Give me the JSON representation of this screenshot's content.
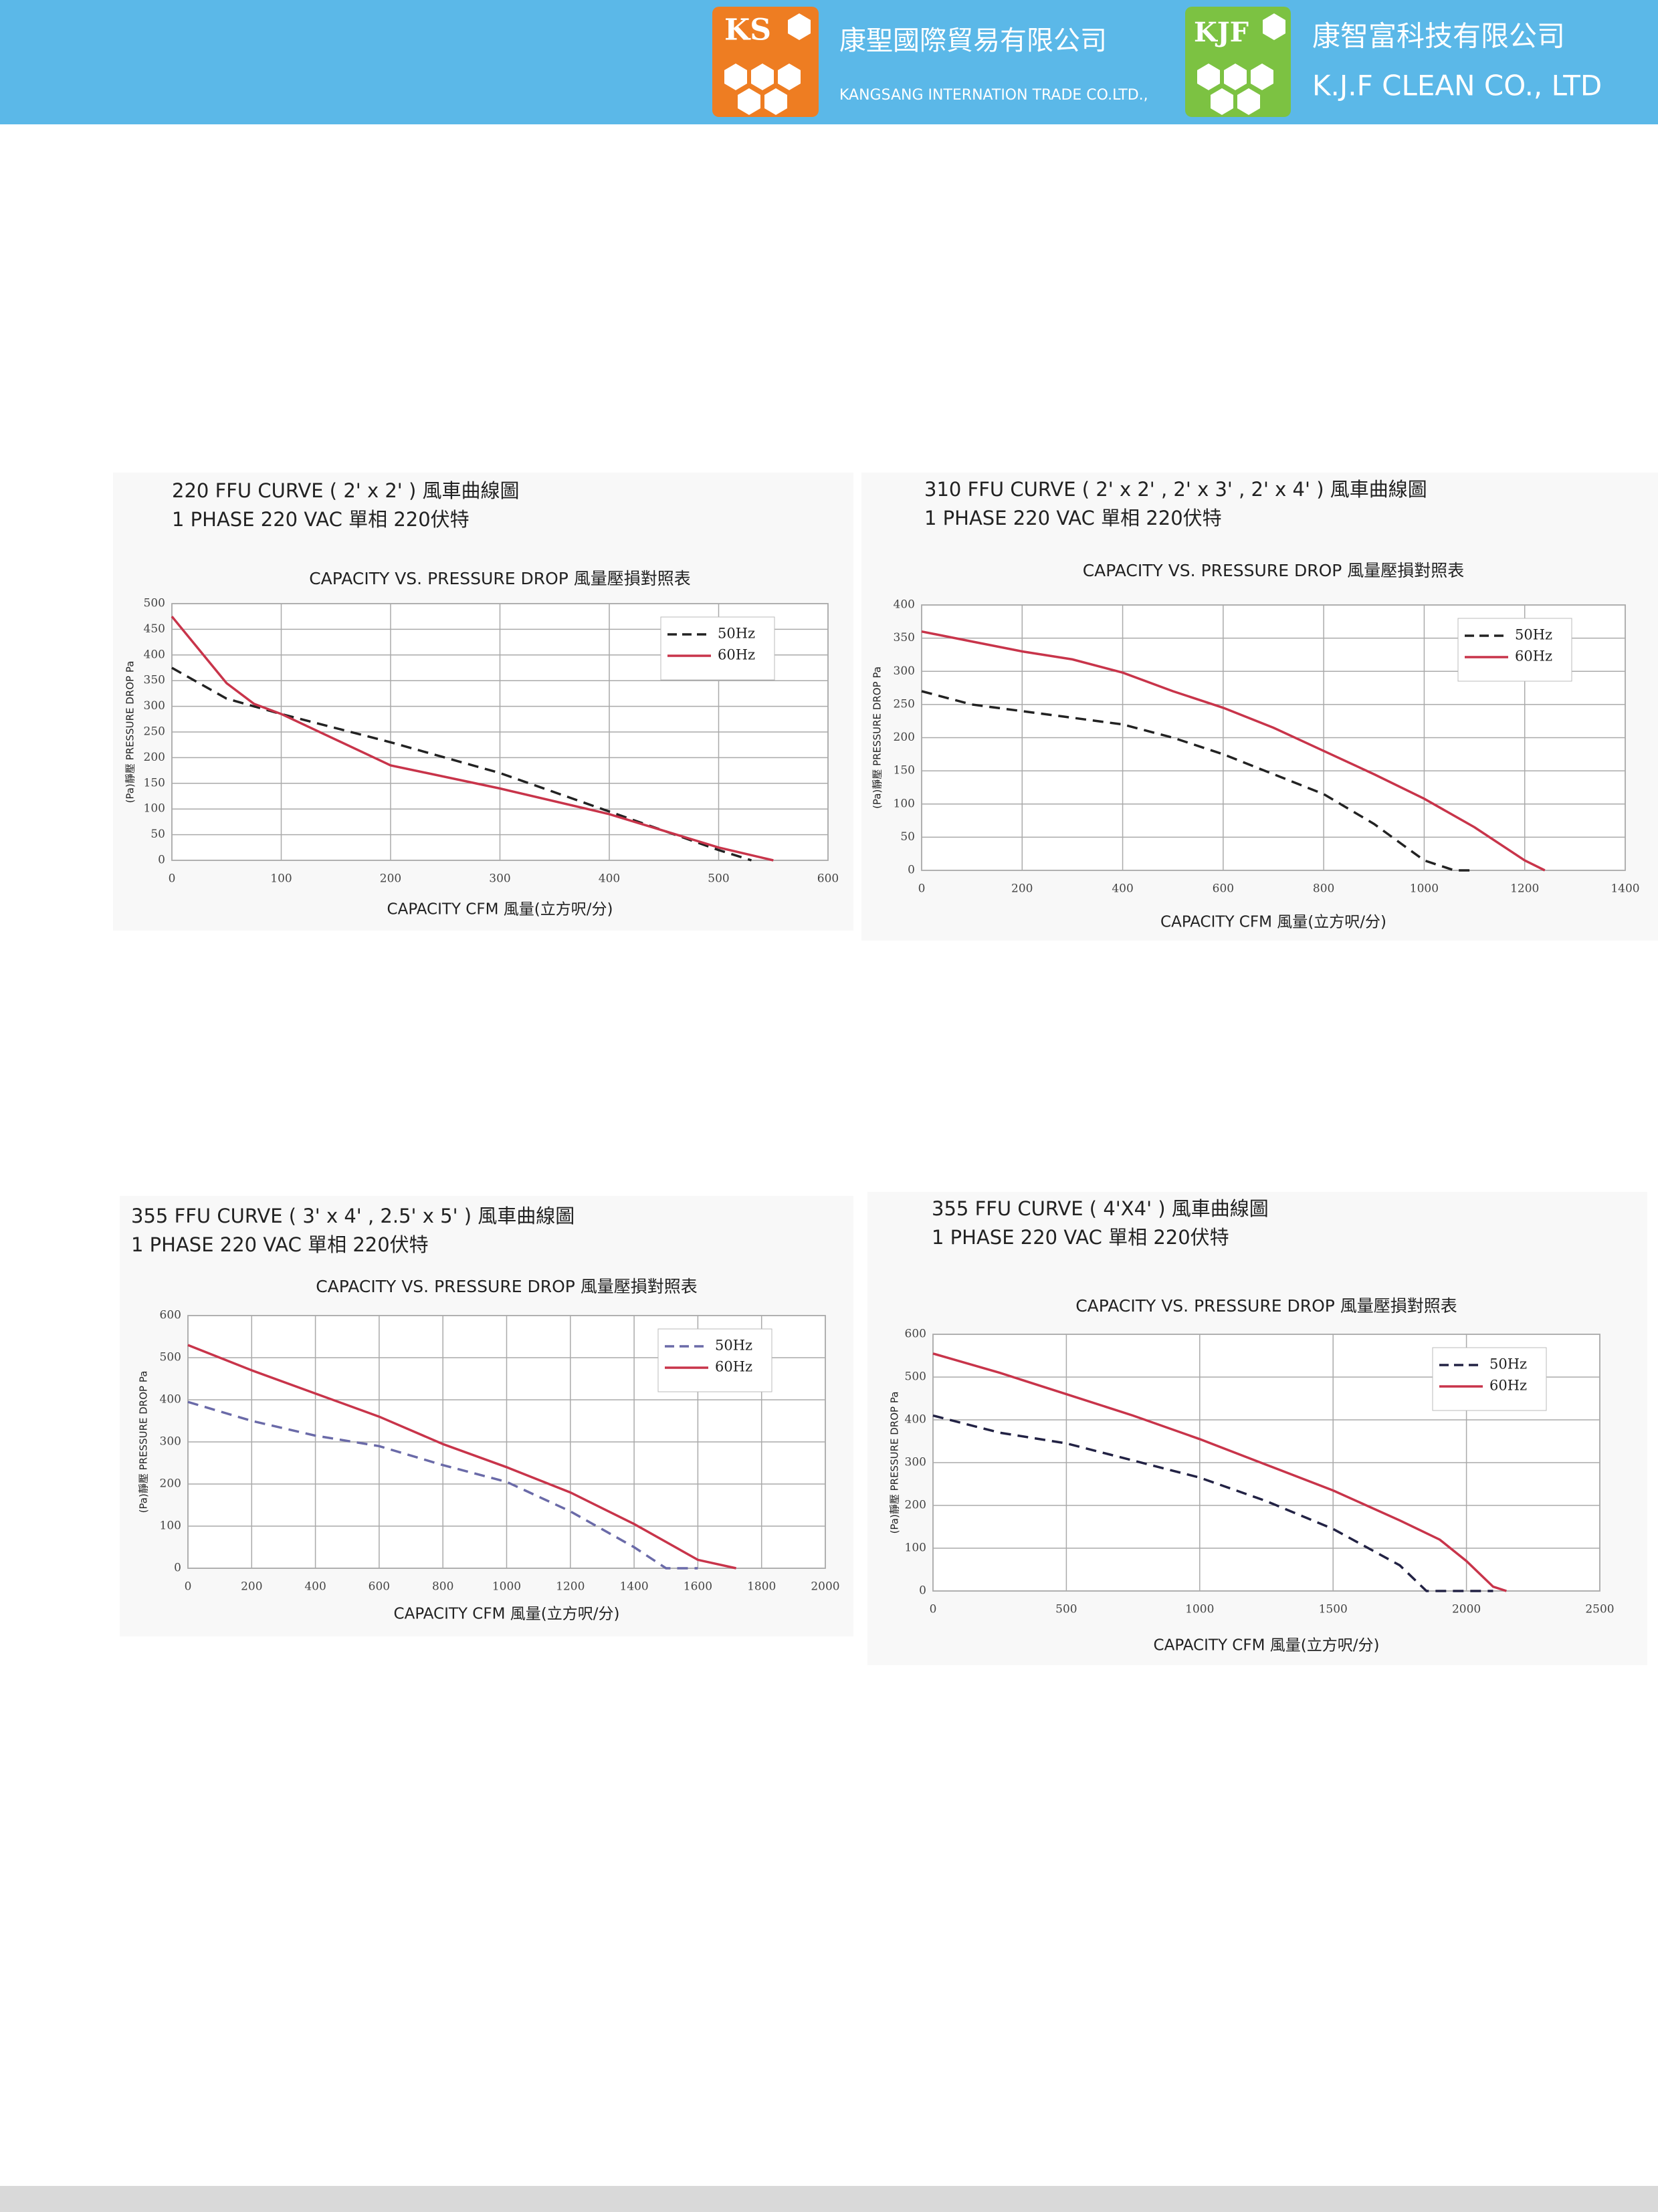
{
  "header": {
    "logo1": "KS",
    "company1_name": "康聖國際貿易有限公司",
    "company1_english": "KANGSANG INTERNATION TRADE CO.LTD.,",
    "logo2": "KJF",
    "company2_name": "康智富科技有限公司",
    "company2_english": "K.J.F CLEAN CO., LTD"
  },
  "chart_data": [
    {
      "type": "line",
      "title": "220 FFU CURVE ( 2' x 2' ) 風車曲線圖",
      "subtitle": "1 PHASE 220 VAC 單相 220伏特",
      "chart_title": "CAPACITY VS. PRESSURE DROP 風量壓損對照表",
      "xlabel": "CAPACITY CFM 風量(立方呎/分)",
      "ylabel": "(Pa)靜壓 PRESSURE DROP Pa",
      "xlim": [
        0,
        600
      ],
      "ylim": [
        0,
        500
      ],
      "xticks": [
        0,
        100,
        200,
        300,
        400,
        500,
        600
      ],
      "yticks": [
        0,
        50,
        100,
        150,
        200,
        250,
        300,
        350,
        400,
        450,
        500
      ],
      "grid": true,
      "legend": "upper right",
      "series": [
        {
          "name": "50Hz",
          "color": "#222222",
          "linestyle": "dashed",
          "x": [
            0,
            50,
            100,
            200,
            300,
            400,
            500,
            530
          ],
          "values": [
            375,
            315,
            285,
            230,
            170,
            95,
            20,
            0
          ]
        },
        {
          "name": "60Hz",
          "color": "#c8344a",
          "linestyle": "solid",
          "x": [
            0,
            25,
            50,
            75,
            100,
            200,
            300,
            400,
            500,
            550
          ],
          "values": [
            475,
            410,
            345,
            305,
            285,
            185,
            140,
            90,
            25,
            0
          ]
        }
      ]
    },
    {
      "type": "line",
      "title": "310 FFU CURVE ( 2' x 2' , 2' x 3' , 2' x 4' ) 風車曲線圖",
      "subtitle": "1 PHASE 220 VAC 單相 220伏特",
      "chart_title": "CAPACITY VS. PRESSURE DROP 風量壓損對照表",
      "xlabel": "CAPACITY CFM 風量(立方呎/分)",
      "ylabel": "(Pa)靜壓 PRESSURE DROP Pa",
      "xlim": [
        0,
        1400
      ],
      "ylim": [
        0,
        400
      ],
      "xticks": [
        0,
        200,
        400,
        600,
        800,
        1000,
        1200,
        1400
      ],
      "yticks": [
        0,
        50,
        100,
        150,
        200,
        250,
        300,
        350,
        400
      ],
      "grid": true,
      "legend": "upper right",
      "series": [
        {
          "name": "50Hz",
          "color": "#222222",
          "linestyle": "dashed",
          "x": [
            0,
            100,
            200,
            300,
            400,
            500,
            600,
            700,
            800,
            900,
            1000,
            1060,
            1100
          ],
          "values": [
            270,
            250,
            240,
            230,
            220,
            200,
            175,
            145,
            115,
            70,
            15,
            0,
            0
          ]
        },
        {
          "name": "60Hz",
          "color": "#c8344a",
          "linestyle": "solid",
          "x": [
            0,
            100,
            200,
            300,
            400,
            500,
            600,
            700,
            800,
            900,
            1000,
            1100,
            1200,
            1240
          ],
          "values": [
            360,
            345,
            330,
            318,
            298,
            270,
            245,
            215,
            180,
            145,
            108,
            65,
            15,
            0
          ]
        }
      ]
    },
    {
      "type": "line",
      "title": "355 FFU CURVE ( 3' x 4' , 2.5' x 5' ) 風車曲線圖",
      "subtitle": "1 PHASE 220 VAC 單相 220伏特",
      "chart_title": "CAPACITY VS. PRESSURE DROP 風量壓損對照表",
      "xlabel": "CAPACITY CFM 風量(立方呎/分)",
      "ylabel": "(Pa)靜壓 PRESSURE DROP Pa",
      "xlim": [
        0,
        2000
      ],
      "ylim": [
        0,
        600
      ],
      "xticks": [
        0,
        200,
        400,
        600,
        800,
        1000,
        1200,
        1400,
        1600,
        1800,
        2000
      ],
      "yticks": [
        0,
        100,
        200,
        300,
        400,
        500,
        600
      ],
      "grid": true,
      "legend": "upper right",
      "series": [
        {
          "name": "50Hz",
          "color": "#6a6aa8",
          "linestyle": "dashed",
          "x": [
            0,
            200,
            400,
            600,
            800,
            1000,
            1200,
            1400,
            1500,
            1600
          ],
          "values": [
            395,
            350,
            315,
            290,
            245,
            205,
            135,
            50,
            0,
            0
          ]
        },
        {
          "name": "60Hz",
          "color": "#c8344a",
          "linestyle": "solid",
          "x": [
            0,
            200,
            400,
            600,
            800,
            1000,
            1200,
            1400,
            1600,
            1720
          ],
          "values": [
            530,
            470,
            415,
            360,
            295,
            240,
            180,
            105,
            20,
            0
          ]
        }
      ]
    },
    {
      "type": "line",
      "title": "355 FFU CURVE ( 4'X4' ) 風車曲線圖",
      "subtitle": "1 PHASE 220 VAC 單相 220伏特",
      "chart_title": "CAPACITY VS. PRESSURE DROP 風量壓損對照表",
      "xlabel": "CAPACITY CFM 風量(立方呎/分)",
      "ylabel": "(Pa)靜壓 PRESSURE DROP Pa",
      "xlim": [
        0,
        2500
      ],
      "ylim": [
        0,
        600
      ],
      "xticks": [
        0,
        500,
        1000,
        1500,
        2000,
        2500
      ],
      "yticks": [
        0,
        100,
        200,
        300,
        400,
        500,
        600
      ],
      "grid": true,
      "legend": "upper right",
      "series": [
        {
          "name": "50Hz",
          "color": "#222244",
          "linestyle": "dashed",
          "x": [
            0,
            250,
            500,
            750,
            1000,
            1250,
            1500,
            1750,
            1850,
            2000,
            2100
          ],
          "values": [
            410,
            370,
            345,
            305,
            265,
            210,
            145,
            60,
            0,
            0,
            0
          ]
        },
        {
          "name": "60Hz",
          "color": "#c8344a",
          "linestyle": "solid",
          "x": [
            0,
            250,
            500,
            750,
            1000,
            1250,
            1500,
            1750,
            1900,
            2000,
            2100,
            2150
          ],
          "values": [
            555,
            510,
            460,
            410,
            355,
            295,
            235,
            165,
            120,
            70,
            10,
            0
          ]
        }
      ]
    }
  ]
}
